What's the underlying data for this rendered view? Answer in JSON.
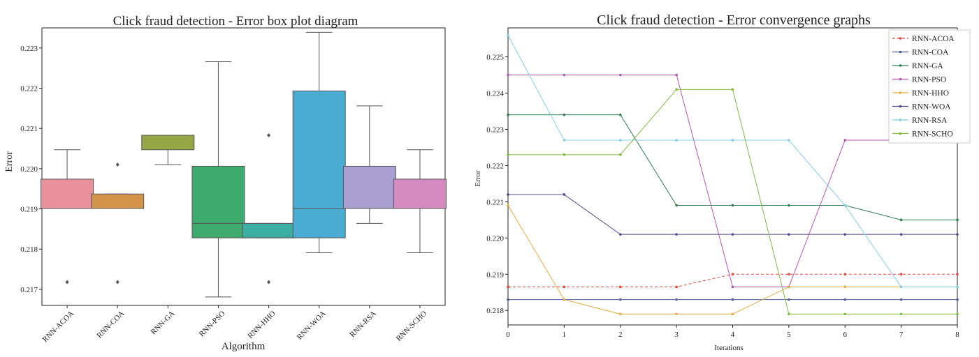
{
  "chart_data": [
    {
      "type": "box",
      "title": "Click fraud detection - Error box plot diagram",
      "xlabel": "Algorithm",
      "ylabel": "Error",
      "ylim": [
        0.2166,
        0.2235
      ],
      "yticks": [
        "0.217",
        "0.218",
        "0.219",
        "0.220",
        "0.221",
        "0.222",
        "0.223"
      ],
      "categories": [
        "RNN-ACOA",
        "RNN-COA",
        "RNN-GA",
        "RNN-PSO",
        "RNN-HHO",
        "RNN-WOA",
        "RNN-RSA",
        "RNN-SCHO"
      ],
      "boxes": [
        {
          "name": "RNN-ACOA",
          "color": "#e8909b",
          "whislo": 0.21901,
          "q1": 0.21901,
          "med": 0.21901,
          "q3": 0.21974,
          "whishi": 0.22047,
          "fliers": [
            0.21718
          ]
        },
        {
          "name": "RNN-COA",
          "color": "#d3944a",
          "whislo": 0.21901,
          "q1": 0.21901,
          "med": 0.21901,
          "q3": 0.21937,
          "whishi": 0.21937,
          "fliers": [
            0.21718,
            0.2201
          ]
        },
        {
          "name": "RNN-GA",
          "color": "#94a646",
          "whislo": 0.2201,
          "q1": 0.22047,
          "med": 0.22083,
          "q3": 0.22083,
          "whishi": 0.22083,
          "fliers": []
        },
        {
          "name": "RNN-PSO",
          "color": "#3dab6e",
          "whislo": 0.21681,
          "q1": 0.21828,
          "med": 0.21864,
          "q3": 0.22006,
          "whishi": 0.22266,
          "fliers": []
        },
        {
          "name": "RNN-HHO",
          "color": "#3bafa3",
          "whislo": 0.21828,
          "q1": 0.21828,
          "med": 0.21828,
          "q3": 0.21864,
          "whishi": 0.21864,
          "fliers": [
            0.21718,
            0.22083
          ]
        },
        {
          "name": "RNN-WOA",
          "color": "#4aacd2",
          "whislo": 0.21791,
          "q1": 0.21828,
          "med": 0.21901,
          "q3": 0.22193,
          "whishi": 0.22339,
          "fliers": []
        },
        {
          "name": "RNN-RSA",
          "color": "#a99fd0",
          "whislo": 0.21864,
          "q1": 0.21901,
          "med": 0.21901,
          "q3": 0.22006,
          "whishi": 0.22156,
          "fliers": []
        },
        {
          "name": "RNN-SCHO",
          "color": "#d58bbf",
          "whislo": 0.21791,
          "q1": 0.21901,
          "med": 0.21901,
          "q3": 0.21974,
          "whishi": 0.22047,
          "fliers": []
        }
      ]
    },
    {
      "type": "line",
      "title": "Click fraud detection -  Error convergence graphs",
      "xlabel": "Iterations",
      "ylabel": "Error",
      "xlim": [
        0,
        8
      ],
      "ylim": [
        0.2176,
        0.2258
      ],
      "x": [
        0,
        1,
        2,
        3,
        4,
        5,
        6,
        7,
        8
      ],
      "xticks": [
        "0",
        "1",
        "2",
        "3",
        "4",
        "5",
        "6",
        "7",
        "8"
      ],
      "yticks": [
        "0.218",
        "0.219",
        "0.220",
        "0.221",
        "0.222",
        "0.223",
        "0.224",
        "0.225"
      ],
      "legend_position": "top-right",
      "series": [
        {
          "name": "RNN-ACOA",
          "color": "#e8443a",
          "dashed": true,
          "values": [
            0.21865,
            0.21865,
            0.21865,
            0.21865,
            0.219,
            0.219,
            0.219,
            0.219,
            0.219
          ]
        },
        {
          "name": "RNN-COA",
          "color": "#4c5ea0",
          "dashed": false,
          "values": [
            0.2183,
            0.2183,
            0.2183,
            0.2183,
            0.2183,
            0.2183,
            0.2183,
            0.2183,
            0.2183
          ]
        },
        {
          "name": "RNN-GA",
          "color": "#2e7d4f",
          "dashed": false,
          "values": [
            0.2234,
            0.2234,
            0.2234,
            0.2209,
            0.2209,
            0.2209,
            0.2209,
            0.2205,
            0.2205
          ]
        },
        {
          "name": "RNN-PSO",
          "color": "#b553b0",
          "dashed": false,
          "values": [
            0.2245,
            0.2245,
            0.2245,
            0.2245,
            0.21865,
            0.21865,
            0.2227,
            0.2227,
            0.2227
          ]
        },
        {
          "name": "RNN-HHO",
          "color": "#e8a93e",
          "dashed": false,
          "values": [
            0.2209,
            0.2183,
            0.2179,
            0.2179,
            0.2179,
            0.21865,
            0.21865,
            0.21865,
            0.21865
          ]
        },
        {
          "name": "RNN-WOA",
          "color": "#55448e",
          "dashed": false,
          "values": [
            0.2212,
            0.2212,
            0.2201,
            0.2201,
            0.2201,
            0.2201,
            0.2201,
            0.2201,
            0.2201
          ]
        },
        {
          "name": "RNN-RSA",
          "color": "#7fd0e6",
          "dashed": false,
          "values": [
            0.2256,
            0.2227,
            0.2227,
            0.2227,
            0.2227,
            0.2227,
            0.2209,
            0.21865,
            0.21865
          ]
        },
        {
          "name": "RNN-SCHO",
          "color": "#7fbb3a",
          "dashed": false,
          "values": [
            0.2223,
            0.2223,
            0.2223,
            0.2241,
            0.2241,
            0.2179,
            0.2179,
            0.2179,
            0.2179
          ]
        }
      ]
    }
  ]
}
